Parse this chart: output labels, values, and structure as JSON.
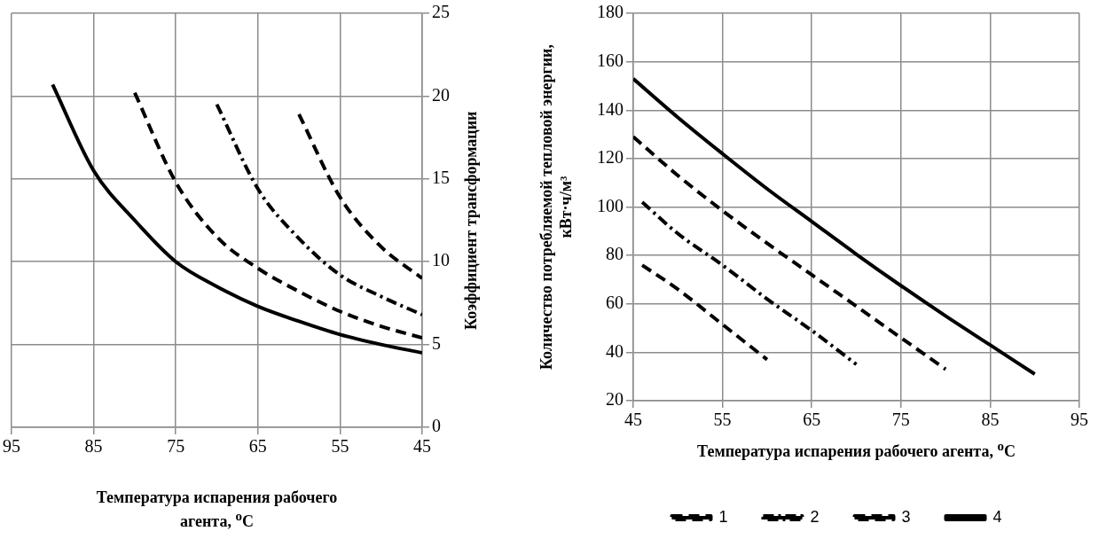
{
  "chart_data": [
    {
      "type": "line",
      "xlabel": "Температура испарения рабочего агента, $^{o}$C",
      "ylabel": "Коэффициент трансформации",
      "xlim": [
        95,
        45
      ],
      "xticks": [
        95,
        85,
        75,
        65,
        55,
        45
      ],
      "ylim": [
        0,
        25
      ],
      "yticks": [
        0,
        5,
        10,
        15,
        20,
        25
      ],
      "grid": true,
      "legend": false,
      "marker": "none",
      "series": [
        {
          "color": "#000000",
          "line_style": "dashed",
          "x": [
            60,
            55,
            50,
            45
          ],
          "values": [
            18.9,
            13.9,
            10.9,
            9.0
          ]
        },
        {
          "color": "#000000",
          "line_style": "dashdot",
          "x": [
            70,
            65,
            60,
            55,
            50,
            45
          ],
          "values": [
            19.5,
            14.4,
            11.4,
            9.2,
            7.9,
            6.8
          ]
        },
        {
          "color": "#000000",
          "line_style": "dashed",
          "x": [
            80,
            75,
            70,
            65,
            60,
            55,
            50,
            45
          ],
          "values": [
            20.2,
            14.8,
            11.5,
            9.6,
            8.2,
            7.0,
            6.1,
            5.4
          ]
        },
        {
          "color": "#000000",
          "line_style": "solid",
          "x": [
            90,
            85,
            80,
            75,
            70,
            65,
            60,
            55,
            50,
            45
          ],
          "values": [
            20.7,
            15.5,
            12.5,
            10.0,
            8.5,
            7.3,
            6.4,
            5.6,
            5.0,
            4.5
          ]
        }
      ]
    },
    {
      "type": "line",
      "xlabel": "Температура испарения рабочего агента, $^{o}$C",
      "ylabel": "Количество потребляемой тепловой энергии, кВт·ч/м³",
      "xlim": [
        45,
        95
      ],
      "xticks": [
        45,
        55,
        65,
        75,
        85,
        95
      ],
      "ylim": [
        20,
        180
      ],
      "yticks": [
        20,
        40,
        60,
        80,
        100,
        120,
        140,
        160,
        180
      ],
      "grid": true,
      "legend": "bottom",
      "marker": "none",
      "series": [
        {
          "name": "1",
          "color": "#000000",
          "line_style": "dashed",
          "x": [
            46,
            50,
            55,
            60
          ],
          "values": [
            76,
            66,
            51.5,
            37
          ]
        },
        {
          "name": "2",
          "color": "#000000",
          "line_style": "dashdot",
          "x": [
            46,
            50,
            55,
            60,
            65,
            70
          ],
          "values": [
            102,
            89,
            76,
            62,
            49,
            35
          ]
        },
        {
          "name": "3",
          "color": "#000000",
          "line_style": "dashed",
          "x": [
            45,
            50,
            55,
            60,
            65,
            70,
            75,
            80
          ],
          "values": [
            129,
            113,
            98.5,
            85,
            72,
            59,
            46,
            33
          ]
        },
        {
          "name": "4",
          "color": "#000000",
          "line_style": "solid",
          "x": [
            45,
            50,
            55,
            60,
            65,
            70,
            75,
            80,
            85,
            90
          ],
          "values": [
            153,
            137,
            122,
            107.5,
            94,
            80.5,
            67.5,
            55,
            43,
            31
          ]
        }
      ]
    }
  ]
}
